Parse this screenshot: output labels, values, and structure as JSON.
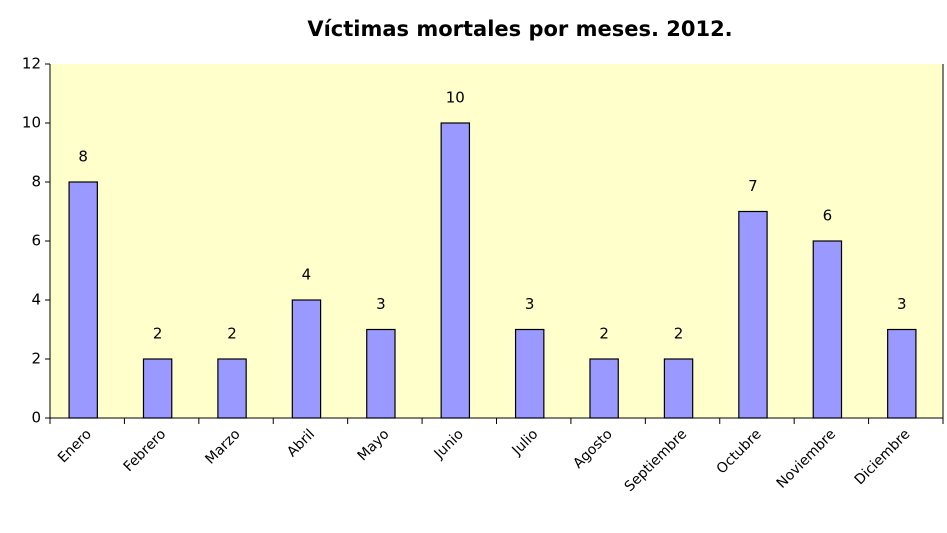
{
  "chart_data": {
    "type": "bar",
    "title": "Víctimas mortales por meses. 2012.",
    "categories": [
      "Enero",
      "Febrero",
      "Marzo",
      "Abril",
      "Mayo",
      "Junio",
      "Julio",
      "Agosto",
      "Septiembre",
      "Octubre",
      "Noviembre",
      "Diciembre"
    ],
    "values": [
      8,
      2,
      2,
      4,
      3,
      10,
      3,
      2,
      2,
      7,
      6,
      3
    ],
    "color": "#9999ff",
    "background": "#ffffcc",
    "ylim": [
      0,
      12
    ],
    "yticks": [
      0,
      2,
      4,
      6,
      8,
      10,
      12
    ]
  }
}
